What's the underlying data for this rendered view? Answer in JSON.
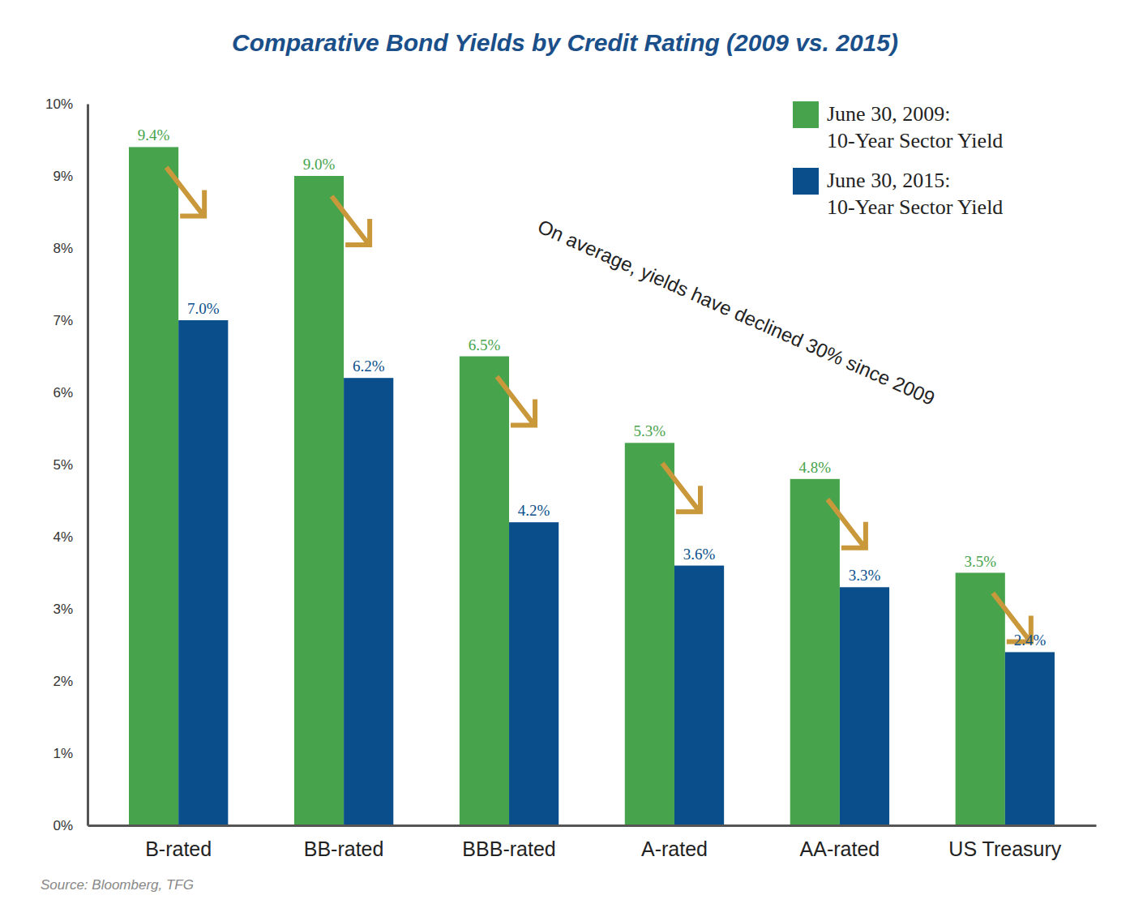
{
  "chart_data": {
    "type": "bar",
    "title": "Comparative Bond Yields by Credit Rating (2009 vs. 2015)",
    "categories": [
      "B-rated",
      "BB-rated",
      "BBB-rated",
      "A-rated",
      "AA-rated",
      "US Treasury"
    ],
    "series": [
      {
        "name": "June 30, 2009: 10-Year Sector Yield",
        "color": "#47a44d",
        "values": [
          9.4,
          9.0,
          6.5,
          5.3,
          4.8,
          3.5
        ],
        "value_labels": [
          "9.4%",
          "9.0%",
          "6.5%",
          "5.3%",
          "4.8%",
          "3.5%"
        ]
      },
      {
        "name": "June 30, 2015: 10-Year Sector Yield",
        "color": "#0a4f8c",
        "values": [
          7.0,
          6.2,
          4.2,
          3.6,
          3.3,
          2.4
        ],
        "value_labels": [
          "7.0%",
          "6.2%",
          "4.2%",
          "3.6%",
          "3.3%",
          "2.4%"
        ]
      }
    ],
    "ylim": [
      0,
      10
    ],
    "yticks": [
      {
        "value": 0,
        "label": "0%"
      },
      {
        "value": 1,
        "label": "1%"
      },
      {
        "value": 2,
        "label": "2%"
      },
      {
        "value": 3,
        "label": "3%"
      },
      {
        "value": 4,
        "label": "4%"
      },
      {
        "value": 5,
        "label": "5%"
      },
      {
        "value": 6,
        "label": "6%"
      },
      {
        "value": 7,
        "label": "7%"
      },
      {
        "value": 8,
        "label": "8%"
      },
      {
        "value": 9,
        "label": "9%"
      },
      {
        "value": 10,
        "label": "10%"
      }
    ],
    "grid": false,
    "legend": "top-right",
    "data_labels": true,
    "annotations": [
      "On average, yields have declined 30% since 2009"
    ],
    "source": "Source: Bloomberg, TFG"
  }
}
